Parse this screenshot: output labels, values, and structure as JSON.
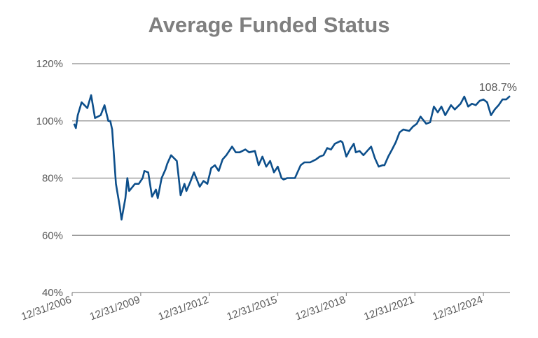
{
  "chart_data": {
    "type": "line",
    "title": "Average Funded Status",
    "annotation": "108.7%",
    "color": "#0d4f8b",
    "grid": true,
    "x": [
      "2007-01-31",
      "2007-02-28",
      "2007-03-31",
      "2007-05-31",
      "2007-08-31",
      "2007-10-31",
      "2007-12-31",
      "2008-03-31",
      "2008-05-31",
      "2008-07-31",
      "2008-08-31",
      "2008-09-30",
      "2008-11-30",
      "2009-01-31",
      "2009-02-28",
      "2009-04-30",
      "2009-05-31",
      "2009-06-30",
      "2009-09-30",
      "2009-11-30",
      "2010-01-31",
      "2010-02-28",
      "2010-04-30",
      "2010-06-30",
      "2010-08-31",
      "2010-09-30",
      "2010-11-30",
      "2011-01-31",
      "2011-02-28",
      "2011-04-30",
      "2011-07-31",
      "2011-08-31",
      "2011-09-30",
      "2011-11-30",
      "2011-12-31",
      "2012-02-29",
      "2012-04-30",
      "2012-07-31",
      "2012-09-30",
      "2012-11-30",
      "2013-01-31",
      "2013-03-31",
      "2013-05-31",
      "2013-07-31",
      "2013-09-30",
      "2013-12-31",
      "2014-02-28",
      "2014-04-30",
      "2014-07-31",
      "2014-09-30",
      "2014-12-31",
      "2015-02-28",
      "2015-04-30",
      "2015-06-30",
      "2015-08-31",
      "2015-10-31",
      "2015-12-31",
      "2016-02-29",
      "2016-03-31",
      "2016-05-31",
      "2016-07-31",
      "2016-09-30",
      "2016-12-31",
      "2017-02-28",
      "2017-05-31",
      "2017-08-31",
      "2017-10-31",
      "2017-12-31",
      "2018-02-28",
      "2018-04-30",
      "2018-06-30",
      "2018-09-30",
      "2018-10-31",
      "2018-12-31",
      "2019-02-28",
      "2019-04-30",
      "2019-05-31",
      "2019-07-31",
      "2019-09-30",
      "2019-11-30",
      "2020-01-31",
      "2020-03-31",
      "2020-05-31",
      "2020-07-31",
      "2020-08-31",
      "2020-10-31",
      "2020-12-31",
      "2021-02-28",
      "2021-04-30",
      "2021-06-30",
      "2021-09-30",
      "2021-11-30",
      "2022-01-31",
      "2022-03-31",
      "2022-06-30",
      "2022-08-31",
      "2022-10-31",
      "2022-12-31",
      "2023-02-28",
      "2023-04-30",
      "2023-07-31",
      "2023-09-30",
      "2023-12-31",
      "2024-02-29",
      "2024-04-30",
      "2024-06-30",
      "2024-08-31",
      "2024-10-31",
      "2024-12-31",
      "2025-02-28",
      "2025-04-30",
      "2025-06-30",
      "2025-08-31",
      "2025-10-31",
      "2025-12-31",
      "2026-02-28"
    ],
    "values": [
      99,
      97.5,
      102,
      106.5,
      104.5,
      109,
      101,
      102,
      105.5,
      100,
      100,
      97,
      78,
      70,
      65.5,
      73,
      80,
      75.5,
      78,
      78,
      80,
      82.5,
      82,
      73.5,
      76,
      73,
      80,
      83,
      85,
      88,
      86,
      80,
      74,
      78,
      75.5,
      78.5,
      82,
      77,
      79,
      78,
      83.5,
      84.5,
      82.5,
      86.5,
      88,
      91,
      89,
      89,
      90,
      89,
      89.5,
      84.5,
      87.5,
      84,
      86,
      82,
      84,
      80,
      79.5,
      80,
      80,
      80,
      84.5,
      85.5,
      85.5,
      86.5,
      87.5,
      88,
      90.5,
      90,
      92,
      93,
      92.5,
      87.5,
      90,
      92,
      89,
      89.5,
      88,
      89.5,
      91,
      87,
      84,
      84.5,
      84.5,
      87.5,
      90,
      92.5,
      96,
      97,
      96.5,
      98,
      99,
      101.5,
      99,
      99.5,
      105,
      103,
      105,
      102,
      105.5,
      104,
      106,
      108.5,
      105,
      106,
      105.5,
      107,
      107.5,
      106.5,
      102,
      104,
      105.5,
      107.5,
      107.5,
      108.7
    ],
    "xlim": [
      "2006-12-31",
      "2026-02-28"
    ],
    "xticks": [
      {
        "value": "2006-12-31",
        "label": "12/31/2006"
      },
      {
        "value": "2009-12-31",
        "label": "12/31/2009"
      },
      {
        "value": "2012-12-31",
        "label": "12/31/2012"
      },
      {
        "value": "2015-12-31",
        "label": "12/31/2015"
      },
      {
        "value": "2018-12-31",
        "label": "12/31/2018"
      },
      {
        "value": "2021-12-31",
        "label": "12/31/2021"
      },
      {
        "value": "2024-12-31",
        "label": "12/31/2024"
      }
    ],
    "ylim": [
      40,
      120
    ],
    "yticks": [
      {
        "value": 40,
        "label": "40%"
      },
      {
        "value": 60,
        "label": "60%"
      },
      {
        "value": 80,
        "label": "80%"
      },
      {
        "value": 100,
        "label": "100%"
      },
      {
        "value": 120,
        "label": "120%"
      }
    ]
  }
}
